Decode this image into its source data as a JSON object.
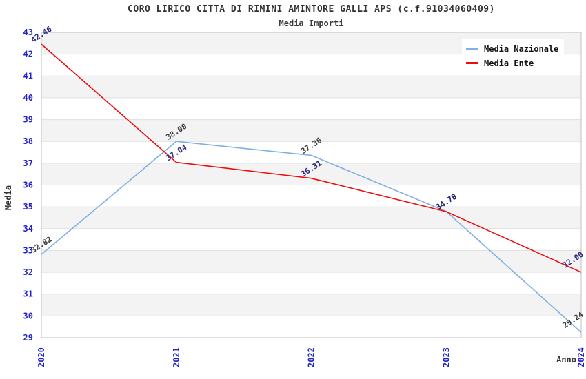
{
  "title": "CORO LIRICO CITTA DI RIMINI AMINTORE GALLI APS (c.f.91034060409)",
  "subtitle": "Media Importi",
  "chart_data": {
    "type": "line",
    "x": [
      "2020",
      "2021",
      "2022",
      "2023",
      "2024"
    ],
    "series": [
      {
        "name": "Media Nazionale",
        "color": "#7fb0e4",
        "label_color": "#3b3b3b",
        "values": [
          32.82,
          38.0,
          37.36,
          34.79,
          29.24
        ]
      },
      {
        "name": "Media Ente",
        "color": "#ee0d0d",
        "label_color": "#2a2a80",
        "values": [
          42.46,
          37.04,
          36.31,
          34.78,
          32.0
        ]
      }
    ],
    "xlabel": "Anno",
    "ylabel": "Media",
    "ylim": [
      29,
      43
    ],
    "y_tick_step": 1,
    "legend_position": "top-right",
    "grid": "horizontal-bands-alternating"
  },
  "colors": {
    "tick_label": "#2222cc",
    "band_gray": "#f3f3f3",
    "grid_line": "#e0e0e0",
    "plot_border": "#c0c0c0",
    "title_text": "#333333"
  }
}
